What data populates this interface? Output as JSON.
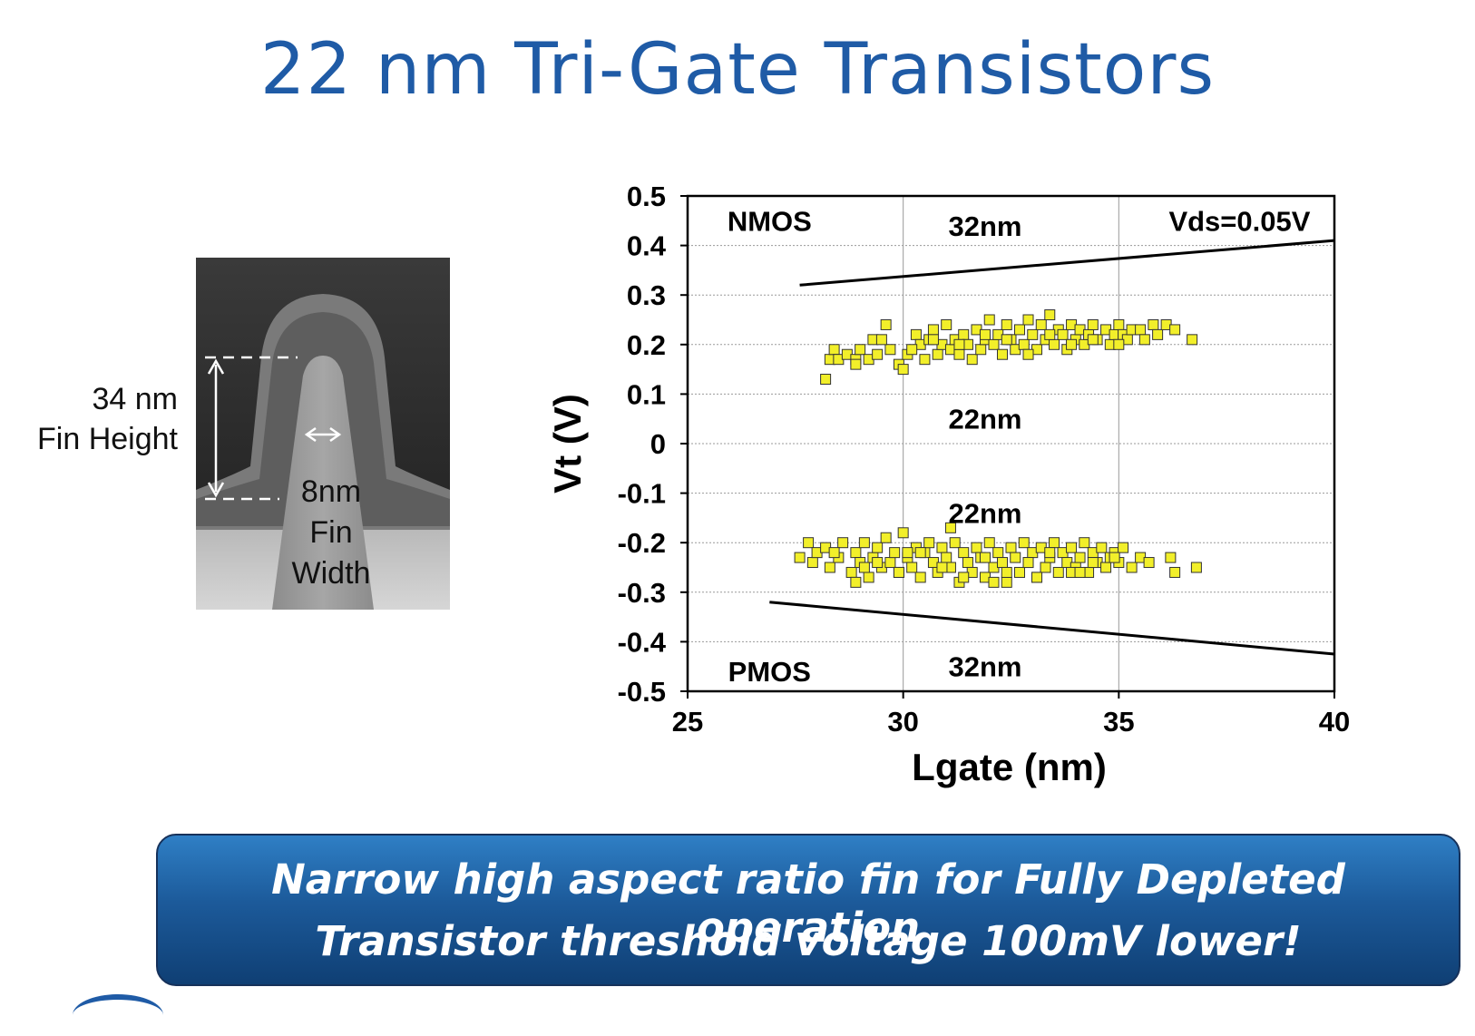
{
  "slide": {
    "title": "22 nm Tri-Gate Transistors",
    "callout_line1": "Narrow high aspect ratio fin for Fully Depleted operation",
    "callout_line2": "Transistor threshold voltage 100mV lower!"
  },
  "fin_image": {
    "height_value": "34 nm",
    "height_label": "Fin Height",
    "width_value": "8nm",
    "width_label1": "Fin",
    "width_label2": "Width"
  },
  "colors": {
    "title": "#1f5ba6",
    "point_fill": "#f2ef2a",
    "callout_top": "#2f7fc5",
    "callout_bottom": "#0f3f74"
  },
  "chart_data": {
    "type": "scatter",
    "xlabel": "Lgate (nm)",
    "ylabel": "Vt (V)",
    "xlim": [
      25,
      40
    ],
    "ylim": [
      -0.5,
      0.5
    ],
    "xticks": [
      "25",
      "30",
      "35",
      "40"
    ],
    "yticks": [
      "0.5",
      "0.4",
      "0.3",
      "0.2",
      "0.1",
      "0",
      "-0.1",
      "-0.2",
      "-0.3",
      "-0.4",
      "-0.5"
    ],
    "ytick_values": [
      0.5,
      0.4,
      0.3,
      0.2,
      0.1,
      0,
      -0.1,
      -0.2,
      -0.3,
      -0.4,
      -0.5
    ],
    "xtick_values": [
      25,
      30,
      35,
      40
    ],
    "grid": true,
    "annotations": [
      {
        "text": "NMOS",
        "x": 26.9,
        "y": 0.45
      },
      {
        "text": "32nm",
        "x": 31.9,
        "y": 0.44
      },
      {
        "text": "Vds=0.05V",
        "x": 37.8,
        "y": 0.45
      },
      {
        "text": "22nm",
        "x": 31.9,
        "y": 0.05
      },
      {
        "text": "22nm",
        "x": 31.9,
        "y": -0.14
      },
      {
        "text": "PMOS",
        "x": 26.9,
        "y": -0.46
      },
      {
        "text": "32nm",
        "x": 31.9,
        "y": -0.45
      }
    ],
    "trend_lines": [
      {
        "name": "",
        "x": [
          27.6,
          40
        ],
        "y": [
          0.32,
          0.41
        ]
      },
      {
        "name": "",
        "x": [
          26.9,
          40
        ],
        "y": [
          -0.32,
          -0.425
        ]
      }
    ],
    "series": [
      {
        "name": "",
        "x": [
          28.2,
          28.3,
          28.4,
          28.5,
          28.7,
          28.9,
          29.0,
          29.2,
          29.3,
          29.4,
          29.6,
          29.7,
          29.9,
          30.0,
          30.1,
          30.3,
          30.4,
          30.5,
          30.6,
          30.7,
          30.8,
          30.9,
          31.0,
          31.1,
          31.2,
          31.3,
          31.4,
          31.5,
          31.6,
          31.7,
          31.8,
          31.9,
          32.0,
          32.1,
          32.2,
          32.3,
          32.4,
          32.5,
          32.6,
          32.7,
          32.8,
          32.9,
          33.0,
          33.1,
          33.2,
          33.3,
          33.4,
          33.5,
          33.6,
          33.7,
          33.8,
          33.9,
          34.0,
          34.1,
          34.2,
          34.3,
          34.4,
          34.5,
          34.7,
          34.8,
          34.9,
          35.0,
          35.1,
          35.2,
          35.3,
          35.5,
          35.6,
          35.8,
          35.9,
          36.1,
          36.3,
          36.7,
          28.9,
          29.5,
          30.2,
          30.7,
          31.3,
          31.9,
          32.4,
          32.9,
          33.4,
          33.9,
          34.4,
          35.0
        ],
        "y": [
          0.13,
          0.17,
          0.19,
          0.17,
          0.18,
          0.17,
          0.19,
          0.17,
          0.21,
          0.18,
          0.24,
          0.19,
          0.16,
          0.15,
          0.18,
          0.22,
          0.2,
          0.17,
          0.21,
          0.23,
          0.18,
          0.2,
          0.24,
          0.19,
          0.21,
          0.18,
          0.22,
          0.2,
          0.17,
          0.23,
          0.19,
          0.21,
          0.25,
          0.2,
          0.22,
          0.18,
          0.24,
          0.21,
          0.19,
          0.23,
          0.2,
          0.25,
          0.22,
          0.19,
          0.24,
          0.21,
          0.26,
          0.2,
          0.23,
          0.22,
          0.19,
          0.24,
          0.21,
          0.23,
          0.2,
          0.22,
          0.24,
          0.21,
          0.23,
          0.2,
          0.22,
          0.24,
          0.22,
          0.21,
          0.23,
          0.23,
          0.21,
          0.24,
          0.22,
          0.24,
          0.23,
          0.21,
          0.16,
          0.21,
          0.19,
          0.21,
          0.2,
          0.22,
          0.21,
          0.18,
          0.22,
          0.2,
          0.21,
          0.2
        ]
      },
      {
        "name": "",
        "x": [
          27.6,
          27.8,
          27.9,
          28.0,
          28.2,
          28.3,
          28.5,
          28.6,
          28.8,
          28.9,
          29.0,
          29.1,
          29.2,
          29.3,
          29.4,
          29.5,
          29.6,
          29.7,
          29.8,
          29.9,
          30.0,
          30.1,
          30.2,
          30.3,
          30.4,
          30.5,
          30.6,
          30.7,
          30.8,
          30.9,
          31.0,
          31.1,
          31.2,
          31.3,
          31.4,
          31.5,
          31.6,
          31.7,
          31.8,
          31.9,
          32.0,
          32.1,
          32.2,
          32.3,
          32.4,
          32.5,
          32.6,
          32.7,
          32.8,
          32.9,
          33.0,
          33.1,
          33.2,
          33.3,
          33.4,
          33.5,
          33.6,
          33.7,
          33.8,
          33.9,
          34.0,
          34.1,
          34.2,
          34.3,
          34.4,
          34.5,
          34.6,
          34.7,
          34.8,
          34.9,
          35.0,
          35.1,
          35.3,
          35.5,
          35.7,
          36.2,
          36.3,
          36.8,
          28.4,
          28.9,
          29.4,
          29.9,
          30.4,
          30.9,
          31.4,
          31.9,
          32.4,
          32.9,
          33.4,
          33.9,
          34.4,
          34.9,
          29.1,
          30.1,
          31.1,
          32.1,
          33.1,
          34.1
        ],
        "y": [
          -0.23,
          -0.2,
          -0.24,
          -0.22,
          -0.21,
          -0.25,
          -0.23,
          -0.2,
          -0.26,
          -0.22,
          -0.24,
          -0.2,
          -0.27,
          -0.23,
          -0.21,
          -0.25,
          -0.19,
          -0.24,
          -0.22,
          -0.26,
          -0.18,
          -0.23,
          -0.25,
          -0.21,
          -0.27,
          -0.22,
          -0.2,
          -0.24,
          -0.26,
          -0.21,
          -0.23,
          -0.25,
          -0.2,
          -0.28,
          -0.22,
          -0.24,
          -0.26,
          -0.21,
          -0.23,
          -0.27,
          -0.2,
          -0.25,
          -0.22,
          -0.24,
          -0.28,
          -0.21,
          -0.23,
          -0.26,
          -0.2,
          -0.24,
          -0.22,
          -0.27,
          -0.21,
          -0.25,
          -0.23,
          -0.2,
          -0.26,
          -0.22,
          -0.24,
          -0.21,
          -0.25,
          -0.23,
          -0.2,
          -0.26,
          -0.22,
          -0.24,
          -0.21,
          -0.25,
          -0.23,
          -0.22,
          -0.24,
          -0.21,
          -0.25,
          -0.23,
          -0.24,
          -0.23,
          -0.26,
          -0.25,
          -0.22,
          -0.28,
          -0.24,
          -0.26,
          -0.22,
          -0.25,
          -0.27,
          -0.23,
          -0.26,
          -0.24,
          -0.22,
          -0.26,
          -0.24,
          -0.23,
          -0.25,
          -0.22,
          -0.17,
          -0.28,
          -0.27,
          -0.26
        ]
      }
    ]
  }
}
